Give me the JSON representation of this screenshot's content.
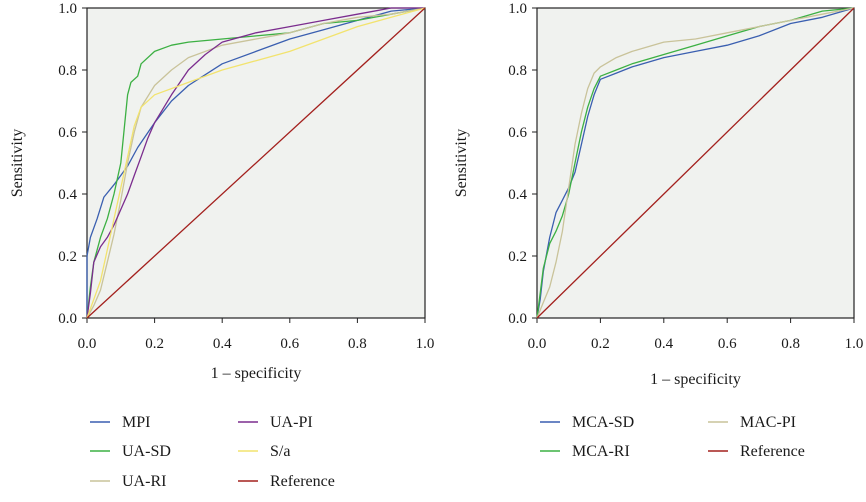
{
  "chart_data": [
    {
      "type": "line",
      "title": "",
      "xlabel": "1 – specificity",
      "ylabel": "Sensitivity",
      "xlim": [
        0,
        1
      ],
      "ylim": [
        0,
        1
      ],
      "xticks": [
        "0.0",
        "0.2",
        "0.4",
        "0.6",
        "0.8",
        "1.0"
      ],
      "yticks": [
        "0.0",
        "0.2",
        "0.4",
        "0.6",
        "0.8",
        "1.0"
      ],
      "grid": false,
      "legend": "bottom",
      "series": [
        {
          "name": "MPI",
          "color": "#3a5fb0",
          "points": [
            [
              0,
              0
            ],
            [
              0,
              0.2
            ],
            [
              0.01,
              0.26
            ],
            [
              0.03,
              0.32
            ],
            [
              0.05,
              0.39
            ],
            [
              0.08,
              0.43
            ],
            [
              0.12,
              0.49
            ],
            [
              0.15,
              0.55
            ],
            [
              0.2,
              0.63
            ],
            [
              0.25,
              0.7
            ],
            [
              0.3,
              0.75
            ],
            [
              0.4,
              0.82
            ],
            [
              0.5,
              0.86
            ],
            [
              0.6,
              0.9
            ],
            [
              0.7,
              0.93
            ],
            [
              0.8,
              0.96
            ],
            [
              0.9,
              0.99
            ],
            [
              1,
              1
            ]
          ]
        },
        {
          "name": "UA-SD",
          "color": "#3cb043",
          "points": [
            [
              0,
              0
            ],
            [
              0.01,
              0.1
            ],
            [
              0.02,
              0.18
            ],
            [
              0.04,
              0.26
            ],
            [
              0.06,
              0.32
            ],
            [
              0.08,
              0.4
            ],
            [
              0.1,
              0.5
            ],
            [
              0.11,
              0.61
            ],
            [
              0.12,
              0.72
            ],
            [
              0.13,
              0.76
            ],
            [
              0.15,
              0.78
            ],
            [
              0.16,
              0.82
            ],
            [
              0.2,
              0.86
            ],
            [
              0.25,
              0.88
            ],
            [
              0.3,
              0.89
            ],
            [
              0.4,
              0.9
            ],
            [
              0.5,
              0.91
            ],
            [
              0.6,
              0.92
            ],
            [
              0.7,
              0.95
            ],
            [
              0.8,
              0.96
            ],
            [
              0.9,
              0.98
            ],
            [
              1,
              1
            ]
          ]
        },
        {
          "name": "UA-RI",
          "color": "#c9c39a",
          "points": [
            [
              0,
              0
            ],
            [
              0.02,
              0.04
            ],
            [
              0.04,
              0.09
            ],
            [
              0.06,
              0.18
            ],
            [
              0.08,
              0.27
            ],
            [
              0.1,
              0.38
            ],
            [
              0.12,
              0.5
            ],
            [
              0.14,
              0.6
            ],
            [
              0.16,
              0.68
            ],
            [
              0.2,
              0.75
            ],
            [
              0.25,
              0.8
            ],
            [
              0.3,
              0.84
            ],
            [
              0.4,
              0.88
            ],
            [
              0.5,
              0.9
            ],
            [
              0.6,
              0.92
            ],
            [
              0.7,
              0.95
            ],
            [
              0.8,
              0.97
            ],
            [
              0.9,
              0.98
            ],
            [
              1,
              1
            ]
          ]
        },
        {
          "name": "UA-PI",
          "color": "#7b2d8e",
          "points": [
            [
              0,
              0
            ],
            [
              0.01,
              0.08
            ],
            [
              0.02,
              0.18
            ],
            [
              0.04,
              0.23
            ],
            [
              0.06,
              0.26
            ],
            [
              0.08,
              0.3
            ],
            [
              0.1,
              0.35
            ],
            [
              0.12,
              0.4
            ],
            [
              0.14,
              0.46
            ],
            [
              0.16,
              0.52
            ],
            [
              0.18,
              0.58
            ],
            [
              0.2,
              0.63
            ],
            [
              0.25,
              0.72
            ],
            [
              0.3,
              0.8
            ],
            [
              0.35,
              0.85
            ],
            [
              0.4,
              0.89
            ],
            [
              0.5,
              0.92
            ],
            [
              0.6,
              0.94
            ],
            [
              0.7,
              0.96
            ],
            [
              0.8,
              0.98
            ],
            [
              0.9,
              1.0
            ],
            [
              1,
              1
            ]
          ]
        },
        {
          "name": "S/a",
          "color": "#f2e36e",
          "points": [
            [
              0,
              0
            ],
            [
              0.02,
              0.06
            ],
            [
              0.04,
              0.12
            ],
            [
              0.06,
              0.22
            ],
            [
              0.08,
              0.32
            ],
            [
              0.1,
              0.42
            ],
            [
              0.12,
              0.52
            ],
            [
              0.14,
              0.62
            ],
            [
              0.16,
              0.68
            ],
            [
              0.2,
              0.72
            ],
            [
              0.3,
              0.76
            ],
            [
              0.4,
              0.8
            ],
            [
              0.5,
              0.83
            ],
            [
              0.6,
              0.86
            ],
            [
              0.7,
              0.9
            ],
            [
              0.8,
              0.94
            ],
            [
              0.9,
              0.97
            ],
            [
              1,
              1
            ]
          ]
        },
        {
          "name": "Reference",
          "color": "#a3201d",
          "points": [
            [
              0,
              0
            ],
            [
              1,
              1
            ]
          ]
        }
      ]
    },
    {
      "type": "line",
      "title": "",
      "xlabel": "1 – specificity",
      "ylabel": "Sensitivity",
      "xlim": [
        0,
        1
      ],
      "ylim": [
        0,
        1
      ],
      "xticks": [
        "0.0",
        "0.2",
        "0.4",
        "0.6",
        "0.8",
        "1.0"
      ],
      "yticks": [
        "0.0",
        "0.2",
        "0.4",
        "0.6",
        "0.8",
        "1.0"
      ],
      "grid": false,
      "legend": "bottom",
      "series": [
        {
          "name": "MCA-SD",
          "color": "#3a5fb0",
          "points": [
            [
              0,
              0
            ],
            [
              0.01,
              0.06
            ],
            [
              0.02,
              0.15
            ],
            [
              0.04,
              0.26
            ],
            [
              0.06,
              0.34
            ],
            [
              0.08,
              0.38
            ],
            [
              0.1,
              0.42
            ],
            [
              0.12,
              0.47
            ],
            [
              0.14,
              0.56
            ],
            [
              0.16,
              0.65
            ],
            [
              0.18,
              0.72
            ],
            [
              0.2,
              0.77
            ],
            [
              0.25,
              0.79
            ],
            [
              0.3,
              0.81
            ],
            [
              0.4,
              0.84
            ],
            [
              0.5,
              0.86
            ],
            [
              0.6,
              0.88
            ],
            [
              0.7,
              0.91
            ],
            [
              0.8,
              0.95
            ],
            [
              0.9,
              0.97
            ],
            [
              1,
              1
            ]
          ]
        },
        {
          "name": "MCA-RI",
          "color": "#3cb043",
          "points": [
            [
              0,
              0
            ],
            [
              0.01,
              0.08
            ],
            [
              0.02,
              0.16
            ],
            [
              0.04,
              0.24
            ],
            [
              0.06,
              0.28
            ],
            [
              0.08,
              0.33
            ],
            [
              0.1,
              0.4
            ],
            [
              0.12,
              0.5
            ],
            [
              0.14,
              0.6
            ],
            [
              0.16,
              0.68
            ],
            [
              0.18,
              0.74
            ],
            [
              0.2,
              0.78
            ],
            [
              0.25,
              0.8
            ],
            [
              0.3,
              0.82
            ],
            [
              0.4,
              0.85
            ],
            [
              0.5,
              0.88
            ],
            [
              0.6,
              0.91
            ],
            [
              0.7,
              0.94
            ],
            [
              0.8,
              0.96
            ],
            [
              0.9,
              0.99
            ],
            [
              1,
              1
            ]
          ]
        },
        {
          "name": "MAC-PI",
          "color": "#c9c39a",
          "points": [
            [
              0,
              0
            ],
            [
              0.02,
              0.05
            ],
            [
              0.04,
              0.1
            ],
            [
              0.06,
              0.18
            ],
            [
              0.08,
              0.28
            ],
            [
              0.1,
              0.42
            ],
            [
              0.12,
              0.56
            ],
            [
              0.14,
              0.66
            ],
            [
              0.16,
              0.74
            ],
            [
              0.18,
              0.79
            ],
            [
              0.2,
              0.81
            ],
            [
              0.25,
              0.84
            ],
            [
              0.3,
              0.86
            ],
            [
              0.4,
              0.89
            ],
            [
              0.5,
              0.9
            ],
            [
              0.6,
              0.92
            ],
            [
              0.7,
              0.94
            ],
            [
              0.8,
              0.96
            ],
            [
              0.9,
              0.98
            ],
            [
              1,
              1
            ]
          ]
        },
        {
          "name": "Reference",
          "color": "#a3201d",
          "points": [
            [
              0,
              0
            ],
            [
              1,
              1
            ]
          ]
        }
      ]
    }
  ]
}
